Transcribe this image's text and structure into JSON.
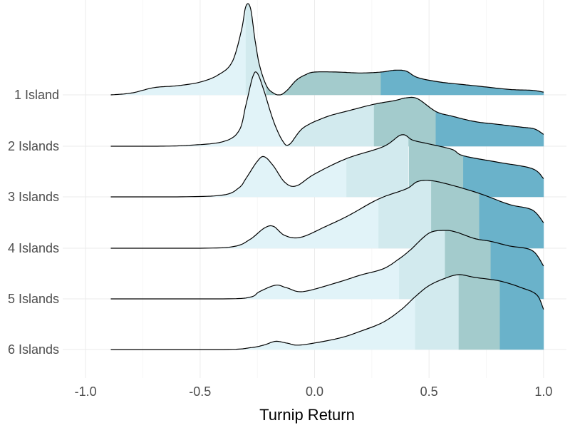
{
  "chart_data": {
    "type": "ridgeline",
    "xlabel": "Turnip Return",
    "x_ticks": [
      -1.0,
      -0.5,
      0.0,
      0.5,
      1.0
    ],
    "x_tick_labels": [
      "-1.0",
      "-0.5",
      "0.0",
      "0.5",
      "1.0"
    ],
    "xlim": [
      -1.1,
      1.1
    ],
    "grid": true,
    "fill_colors": [
      "#e1f3f8",
      "#d2eaee",
      "#a3cbcc",
      "#6ab2ca"
    ],
    "series": [
      {
        "name": "1 Island",
        "quartiles": [
          -0.3,
          -0.21,
          0.29
        ],
        "density": [
          [
            -0.89,
            0.0
          ],
          [
            -0.8,
            0.02
          ],
          [
            -0.7,
            0.08
          ],
          [
            -0.6,
            0.1
          ],
          [
            -0.5,
            0.14
          ],
          [
            -0.42,
            0.22
          ],
          [
            -0.36,
            0.36
          ],
          [
            -0.32,
            0.7
          ],
          [
            -0.3,
            0.97
          ],
          [
            -0.28,
            0.95
          ],
          [
            -0.26,
            0.6
          ],
          [
            -0.24,
            0.32
          ],
          [
            -0.21,
            0.1
          ],
          [
            -0.18,
            0.02
          ],
          [
            -0.15,
            0.0
          ],
          [
            -0.12,
            0.05
          ],
          [
            -0.08,
            0.16
          ],
          [
            -0.04,
            0.22
          ],
          [
            0.0,
            0.25
          ],
          [
            0.1,
            0.25
          ],
          [
            0.2,
            0.24
          ],
          [
            0.29,
            0.25
          ],
          [
            0.35,
            0.27
          ],
          [
            0.4,
            0.26
          ],
          [
            0.45,
            0.19
          ],
          [
            0.55,
            0.14
          ],
          [
            0.7,
            0.1
          ],
          [
            0.85,
            0.06
          ],
          [
            0.95,
            0.05
          ],
          [
            1.0,
            0.03
          ]
        ]
      },
      {
        "name": "2 Islands",
        "quartiles": [
          -0.13,
          0.26,
          0.53
        ],
        "density": [
          [
            -0.89,
            0.0
          ],
          [
            -0.7,
            0.0
          ],
          [
            -0.55,
            0.01
          ],
          [
            -0.4,
            0.05
          ],
          [
            -0.33,
            0.17
          ],
          [
            -0.3,
            0.45
          ],
          [
            -0.27,
            0.76
          ],
          [
            -0.25,
            0.8
          ],
          [
            -0.22,
            0.6
          ],
          [
            -0.18,
            0.28
          ],
          [
            -0.14,
            0.06
          ],
          [
            -0.11,
            0.02
          ],
          [
            -0.05,
            0.2
          ],
          [
            0.05,
            0.32
          ],
          [
            0.15,
            0.39
          ],
          [
            0.26,
            0.46
          ],
          [
            0.35,
            0.5
          ],
          [
            0.4,
            0.53
          ],
          [
            0.45,
            0.52
          ],
          [
            0.53,
            0.38
          ],
          [
            0.6,
            0.33
          ],
          [
            0.7,
            0.27
          ],
          [
            0.8,
            0.24
          ],
          [
            0.9,
            0.21
          ],
          [
            0.96,
            0.19
          ],
          [
            1.0,
            0.13
          ]
        ]
      },
      {
        "name": "3 Islands",
        "quartiles": [
          0.14,
          0.41,
          0.65
        ],
        "density": [
          [
            -0.89,
            0.0
          ],
          [
            -0.6,
            0.0
          ],
          [
            -0.4,
            0.02
          ],
          [
            -0.33,
            0.1
          ],
          [
            -0.3,
            0.2
          ],
          [
            -0.25,
            0.39
          ],
          [
            -0.22,
            0.44
          ],
          [
            -0.18,
            0.34
          ],
          [
            -0.13,
            0.16
          ],
          [
            -0.08,
            0.12
          ],
          [
            0.0,
            0.25
          ],
          [
            0.14,
            0.42
          ],
          [
            0.3,
            0.55
          ],
          [
            0.38,
            0.68
          ],
          [
            0.43,
            0.62
          ],
          [
            0.5,
            0.58
          ],
          [
            0.6,
            0.52
          ],
          [
            0.65,
            0.45
          ],
          [
            0.8,
            0.38
          ],
          [
            0.95,
            0.31
          ],
          [
            1.0,
            0.2
          ]
        ]
      },
      {
        "name": "4 Islands",
        "quartiles": [
          0.28,
          0.51,
          0.72
        ],
        "density": [
          [
            -0.89,
            0.0
          ],
          [
            -0.5,
            0.0
          ],
          [
            -0.35,
            0.02
          ],
          [
            -0.28,
            0.1
          ],
          [
            -0.22,
            0.22
          ],
          [
            -0.18,
            0.24
          ],
          [
            -0.13,
            0.14
          ],
          [
            -0.06,
            0.12
          ],
          [
            0.05,
            0.24
          ],
          [
            0.15,
            0.36
          ],
          [
            0.28,
            0.54
          ],
          [
            0.4,
            0.65
          ],
          [
            0.45,
            0.73
          ],
          [
            0.51,
            0.74
          ],
          [
            0.6,
            0.69
          ],
          [
            0.72,
            0.6
          ],
          [
            0.85,
            0.48
          ],
          [
            0.95,
            0.42
          ],
          [
            1.0,
            0.28
          ]
        ]
      },
      {
        "name": "5 Islands",
        "quartiles": [
          0.37,
          0.57,
          0.77
        ],
        "density": [
          [
            -0.89,
            0.0
          ],
          [
            -0.4,
            0.0
          ],
          [
            -0.28,
            0.02
          ],
          [
            -0.24,
            0.08
          ],
          [
            -0.17,
            0.15
          ],
          [
            -0.12,
            0.12
          ],
          [
            -0.05,
            0.08
          ],
          [
            0.1,
            0.18
          ],
          [
            0.2,
            0.26
          ],
          [
            0.3,
            0.33
          ],
          [
            0.37,
            0.44
          ],
          [
            0.42,
            0.54
          ],
          [
            0.5,
            0.72
          ],
          [
            0.57,
            0.75
          ],
          [
            0.62,
            0.73
          ],
          [
            0.7,
            0.66
          ],
          [
            0.77,
            0.63
          ],
          [
            0.85,
            0.58
          ],
          [
            0.95,
            0.53
          ],
          [
            1.0,
            0.36
          ]
        ]
      },
      {
        "name": "6 Islands",
        "quartiles": [
          0.44,
          0.63,
          0.81
        ],
        "density": [
          [
            -0.89,
            0.0
          ],
          [
            -0.4,
            0.0
          ],
          [
            -0.28,
            0.02
          ],
          [
            -0.22,
            0.05
          ],
          [
            -0.17,
            0.09
          ],
          [
            -0.12,
            0.07
          ],
          [
            -0.06,
            0.05
          ],
          [
            0.1,
            0.12
          ],
          [
            0.2,
            0.2
          ],
          [
            0.3,
            0.3
          ],
          [
            0.38,
            0.44
          ],
          [
            0.44,
            0.58
          ],
          [
            0.5,
            0.7
          ],
          [
            0.57,
            0.78
          ],
          [
            0.63,
            0.82
          ],
          [
            0.7,
            0.79
          ],
          [
            0.81,
            0.75
          ],
          [
            0.9,
            0.68
          ],
          [
            0.97,
            0.6
          ],
          [
            1.0,
            0.44
          ]
        ]
      }
    ]
  }
}
